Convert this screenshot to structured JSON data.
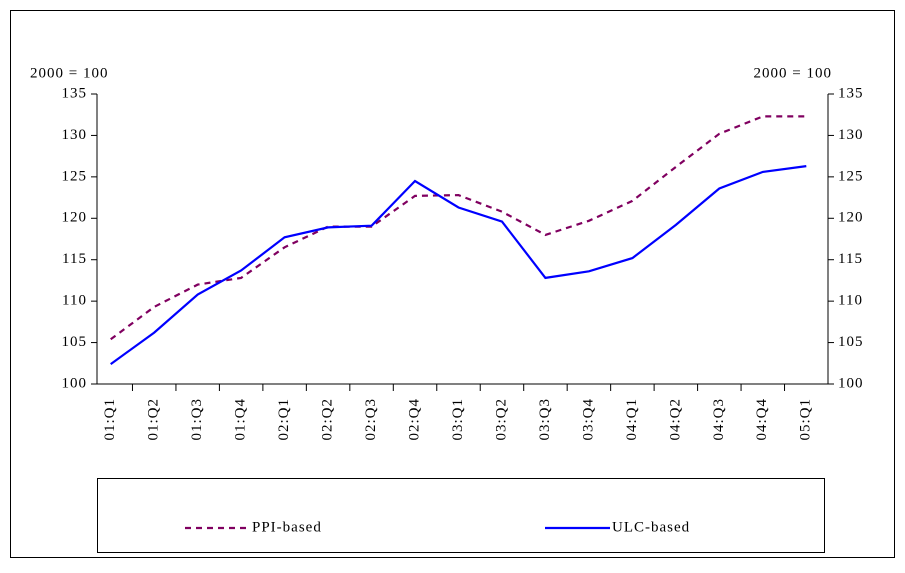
{
  "chart_data": {
    "type": "line",
    "y_unit_label": "2000 = 100",
    "y2_unit_label": "2000 = 100",
    "categories": [
      "01:Q1",
      "01:Q2",
      "01:Q3",
      "01:Q4",
      "02:Q1",
      "02:Q2",
      "02:Q3",
      "02:Q4",
      "03:Q1",
      "03:Q2",
      "03:Q3",
      "03:Q4",
      "04:Q1",
      "04:Q2",
      "04:Q3",
      "04:Q4",
      "05:Q1"
    ],
    "series": [
      {
        "name": "PPI-based",
        "color": "#800060",
        "dash": true,
        "values": [
          105.4,
          109.3,
          112.0,
          112.8,
          116.5,
          119.0,
          119.0,
          122.7,
          122.8,
          120.8,
          118.0,
          119.7,
          122.1,
          126.2,
          130.2,
          132.3,
          132.3
        ]
      },
      {
        "name": "ULC-based",
        "color": "#0000ff",
        "dash": false,
        "values": [
          102.4,
          106.2,
          110.8,
          113.7,
          117.7,
          118.9,
          119.1,
          124.5,
          121.3,
          119.6,
          112.8,
          113.6,
          115.2,
          119.2,
          123.6,
          125.6,
          126.3
        ]
      }
    ],
    "ylim": [
      100,
      135
    ],
    "yticks": [
      100,
      105,
      110,
      115,
      120,
      125,
      130,
      135
    ],
    "y2lim": [
      100,
      135
    ],
    "y2ticks": [
      100,
      105,
      110,
      115,
      120,
      125,
      130,
      135
    ],
    "legend": "bottom"
  }
}
